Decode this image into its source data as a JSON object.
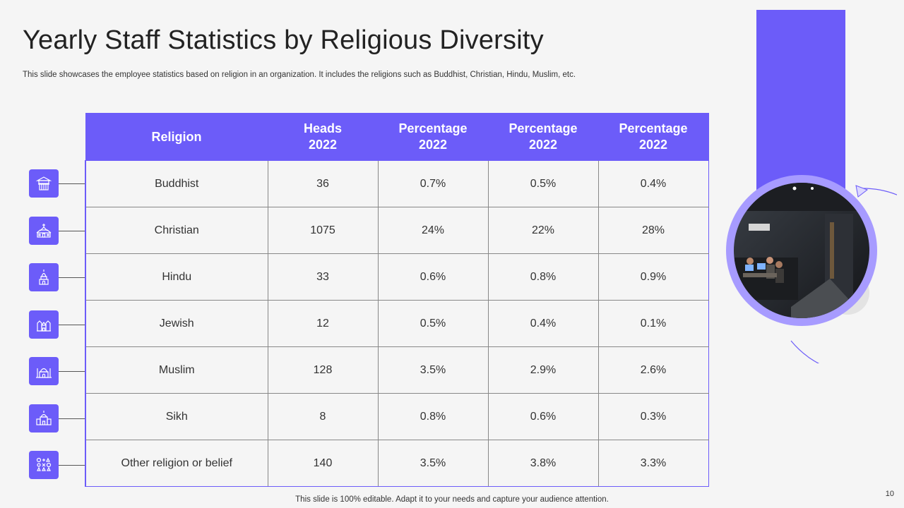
{
  "slide": {
    "title": "Yearly Staff Statistics by Religious Diversity",
    "subtitle": "This slide showcases the employee statistics based on religion in an organization. It includes the religions such as Buddhist, Christian, Hindu, Muslim, etc.",
    "footer": "This slide is 100% editable. Adapt it to your  needs and capture your audience attention.",
    "page_number": "10",
    "accent_color": "#6c5cf9"
  },
  "table": {
    "headers": [
      {
        "line1": "Religion",
        "line2": ""
      },
      {
        "line1": "Heads",
        "line2": "2022"
      },
      {
        "line1": "Percentage",
        "line2": "2022"
      },
      {
        "line1": "Percentage",
        "line2": "2022"
      },
      {
        "line1": "Percentage",
        "line2": "2022"
      }
    ],
    "rows": [
      {
        "religion": "Buddhist",
        "icon": "pagoda-icon",
        "heads": "36",
        "p1": "0.7%",
        "p2": "0.5%",
        "p3": "0.4%"
      },
      {
        "religion": "Christian",
        "icon": "church-icon",
        "heads": "1075",
        "p1": "24%",
        "p2": "22%",
        "p3": "28%"
      },
      {
        "religion": "Hindu",
        "icon": "hindu-temple-icon",
        "heads": "33",
        "p1": "0.6%",
        "p2": "0.8%",
        "p3": "0.9%"
      },
      {
        "religion": "Jewish",
        "icon": "synagogue-icon",
        "heads": "12",
        "p1": "0.5%",
        "p2": "0.4%",
        "p3": "0.1%"
      },
      {
        "religion": "Muslim",
        "icon": "mosque-icon",
        "heads": "128",
        "p1": "3.5%",
        "p2": "2.9%",
        "p3": "2.6%"
      },
      {
        "religion": "Sikh",
        "icon": "gurdwara-icon",
        "heads": "8",
        "p1": "0.8%",
        "p2": "0.6%",
        "p3": "0.3%"
      },
      {
        "religion": "Other religion or belief",
        "icon": "religious-symbols-icon",
        "heads": "140",
        "p1": "3.5%",
        "p2": "3.8%",
        "p3": "3.3%"
      }
    ]
  }
}
